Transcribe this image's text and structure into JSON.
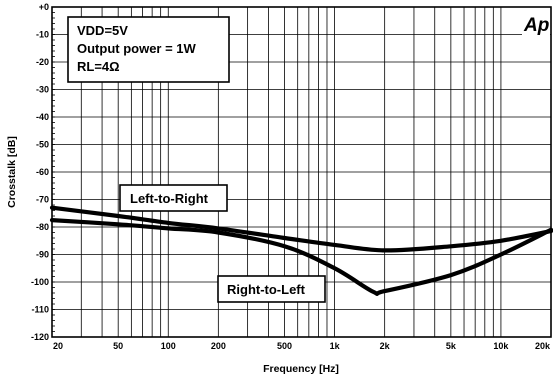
{
  "chart_data": {
    "type": "line",
    "xlabel": "Frequency [Hz]",
    "ylabel": "Crosstalk [dB]",
    "x_scale": "log",
    "xlim": [
      20,
      20000
    ],
    "ylim": [
      -120,
      0
    ],
    "grid": true,
    "x_ticks": [
      20,
      50,
      100,
      200,
      500,
      1000,
      2000,
      5000,
      10000,
      20000
    ],
    "x_tick_labels": [
      "20",
      "50",
      "100",
      "200",
      "500",
      "1k",
      "2k",
      "5k",
      "10k",
      "20k"
    ],
    "y_ticks": [
      0,
      -10,
      -20,
      -30,
      -40,
      -50,
      -60,
      -70,
      -80,
      -90,
      -100,
      -110,
      -120
    ],
    "y_tick_labels": [
      "+0",
      "-10",
      "-20",
      "-30",
      "-40",
      "-50",
      "-60",
      "-70",
      "-80",
      "-90",
      "-100",
      "-110",
      "-120"
    ],
    "conditions": [
      "VDD=5V",
      "Output power = 1W",
      "RL=4Ω"
    ],
    "logo_text": "Ap",
    "series": [
      {
        "name": "Left-to-Right",
        "points": [
          [
            20,
            -73
          ],
          [
            50,
            -76
          ],
          [
            100,
            -78.5
          ],
          [
            200,
            -80.5
          ],
          [
            500,
            -84
          ],
          [
            1000,
            -86.5
          ],
          [
            2000,
            -88.5
          ],
          [
            5000,
            -87
          ],
          [
            10000,
            -85
          ],
          [
            20000,
            -81.5
          ]
        ]
      },
      {
        "name": "Right-to-Left",
        "points": [
          [
            20,
            -77.5
          ],
          [
            50,
            -79
          ],
          [
            100,
            -80.5
          ],
          [
            200,
            -82
          ],
          [
            500,
            -87
          ],
          [
            1000,
            -95
          ],
          [
            1700,
            -103.5
          ],
          [
            2000,
            -103.3
          ],
          [
            5000,
            -97.5
          ],
          [
            10000,
            -90
          ],
          [
            20000,
            -81
          ]
        ]
      }
    ]
  }
}
